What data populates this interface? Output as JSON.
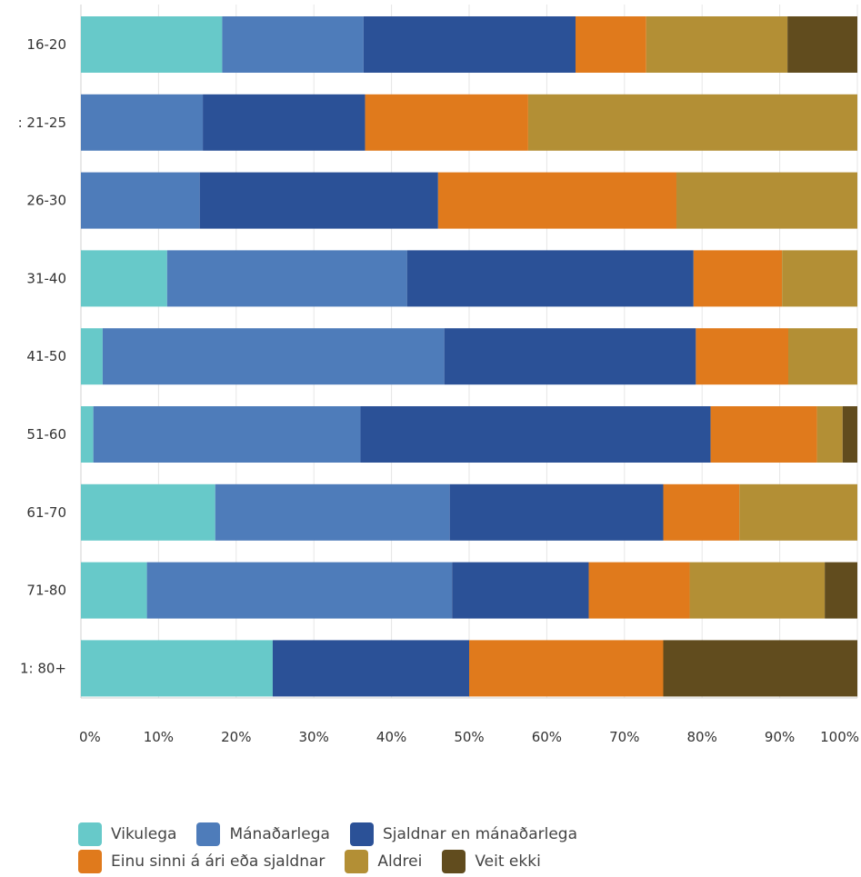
{
  "chart_data": {
    "type": "bar",
    "orientation": "horizontal",
    "stacked": true,
    "categories": [
      "16-20",
      ": 21-25",
      "26-30",
      "31-40",
      "41-50",
      "51-60",
      "61-70",
      "71-80",
      "1: 80+"
    ],
    "series": [
      {
        "name": "Vikulega",
        "color": "#67c9c9",
        "values": [
          18.2,
          0,
          0,
          11.1,
          2.8,
          1.6,
          17.3,
          8.5,
          24.7
        ]
      },
      {
        "name": "Mánaðarlega",
        "color": "#4e7cba",
        "values": [
          18.2,
          15.7,
          15.3,
          30.9,
          44.0,
          34.4,
          30.2,
          39.3,
          0
        ]
      },
      {
        "name": "Sjaldnar en mánaðarlega",
        "color": "#2b5197",
        "values": [
          27.3,
          20.9,
          30.7,
          36.9,
          32.4,
          45.1,
          27.5,
          17.6,
          25.3
        ]
      },
      {
        "name": "Einu sinni á ári eða sjaldnar",
        "color": "#e07a1c",
        "values": [
          9.1,
          21.0,
          30.7,
          11.4,
          11.9,
          13.7,
          9.8,
          13.0,
          25.0
        ]
      },
      {
        "name": "Aldrei",
        "color": "#b38f35",
        "values": [
          18.2,
          42.4,
          23.3,
          9.7,
          8.9,
          3.3,
          15.2,
          17.4,
          0
        ]
      },
      {
        "name": "Veit ekki",
        "color": "#614c1e",
        "values": [
          9.0,
          0,
          0,
          0,
          0,
          1.9,
          0,
          4.2,
          25.0
        ]
      }
    ],
    "x_ticks": [
      "0%",
      "10%",
      "20%",
      "30%",
      "40%",
      "50%",
      "60%",
      "70%",
      "80%",
      "90%",
      "100%"
    ],
    "xlim": [
      0,
      100
    ],
    "grid": true,
    "legend_position": "bottom"
  }
}
